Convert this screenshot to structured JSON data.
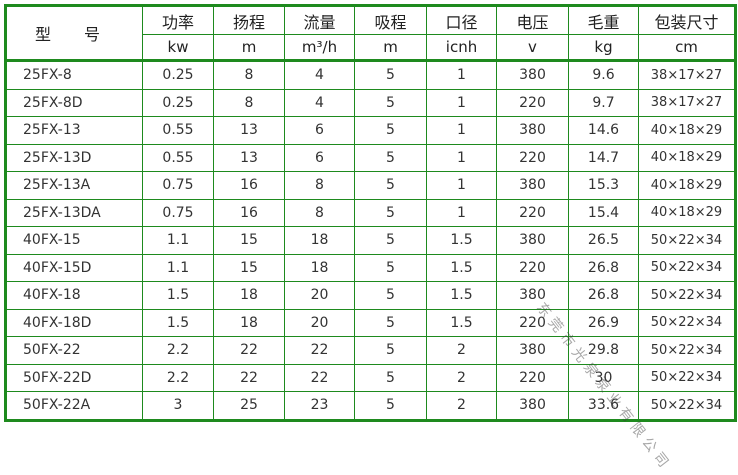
{
  "header": {
    "model": "型 号",
    "columns": [
      {
        "name": "功率",
        "unit": "kw"
      },
      {
        "name": "扬程",
        "unit": "m"
      },
      {
        "name": "流量",
        "unit": "m³/h"
      },
      {
        "name": "吸程",
        "unit": "m"
      },
      {
        "name": "口径",
        "unit": "icnh"
      },
      {
        "name": "电压",
        "unit": "v"
      },
      {
        "name": "毛重",
        "unit": "kg"
      },
      {
        "name": "包装尺寸",
        "unit": "cm"
      }
    ]
  },
  "rows": [
    [
      "25FX-8",
      "0.25",
      "8",
      "4",
      "5",
      "1",
      "380",
      "9.6",
      "38×17×27"
    ],
    [
      "25FX-8D",
      "0.25",
      "8",
      "4",
      "5",
      "1",
      "220",
      "9.7",
      "38×17×27"
    ],
    [
      "25FX-13",
      "0.55",
      "13",
      "6",
      "5",
      "1",
      "380",
      "14.6",
      "40×18×29"
    ],
    [
      "25FX-13D",
      "0.55",
      "13",
      "6",
      "5",
      "1",
      "220",
      "14.7",
      "40×18×29"
    ],
    [
      "25FX-13A",
      "0.75",
      "16",
      "8",
      "5",
      "1",
      "380",
      "15.3",
      "40×18×29"
    ],
    [
      "25FX-13DA",
      "0.75",
      "16",
      "8",
      "5",
      "1",
      "220",
      "15.4",
      "40×18×29"
    ],
    [
      "40FX-15",
      "1.1",
      "15",
      "18",
      "5",
      "1.5",
      "380",
      "26.5",
      "50×22×34"
    ],
    [
      "40FX-15D",
      "1.1",
      "15",
      "18",
      "5",
      "1.5",
      "220",
      "26.8",
      "50×22×34"
    ],
    [
      "40FX-18",
      "1.5",
      "18",
      "20",
      "5",
      "1.5",
      "380",
      "26.8",
      "50×22×34"
    ],
    [
      "40FX-18D",
      "1.5",
      "18",
      "20",
      "5",
      "1.5",
      "220",
      "26.9",
      "50×22×34"
    ],
    [
      "50FX-22",
      "2.2",
      "22",
      "22",
      "5",
      "2",
      "380",
      "29.8",
      "50×22×34"
    ],
    [
      "50FX-22D",
      "2.2",
      "22",
      "22",
      "5",
      "2",
      "220",
      "30",
      "50×22×34"
    ],
    [
      "50FX-22A",
      "3",
      "25",
      "23",
      "5",
      "2",
      "380",
      "33.6",
      "50×22×34"
    ]
  ],
  "watermark": "东莞市光泉泵业有限公司",
  "colors": {
    "border": "#1e8a1e"
  }
}
